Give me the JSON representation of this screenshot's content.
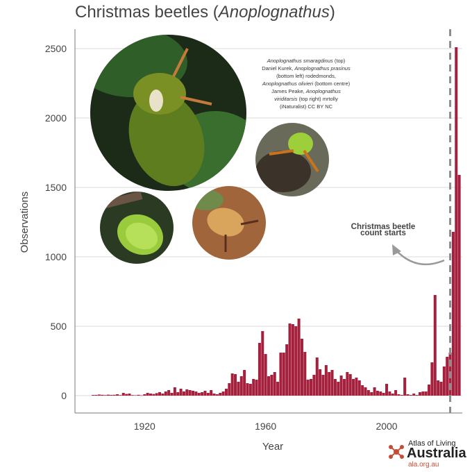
{
  "title_plain": "Christmas beetles (",
  "title_italic": "Anoplognathus",
  "title_close": ")",
  "photo_credit": {
    "line1_italic": "Anoplognathus smaragdinus",
    "line1_rest": " (top)",
    "line2": "Daniel Kurek, ",
    "line2_italic": "Anoplognathus prasinus",
    "line3": "(bottom left) rodedmonds,",
    "line4_italic": "Anoplognathus olivieri",
    "line4_rest": " (bottom centre)",
    "line5": "James Peake, ",
    "line5_italic": "Anoplognathus",
    "line6_italic": "viriditarsis",
    "line6_rest": " (top right) mrtolly",
    "line7": "(iNaturalist) CC BY NC"
  },
  "annotation": {
    "line1": "Christmas beetle",
    "line2": "count starts"
  },
  "logo": {
    "line1": "Atlas of Living",
    "line2": "Australia",
    "line3": "ala.org.au"
  },
  "colors": {
    "bar": "#a4203c",
    "grid": "#d9d9d9",
    "dashed_line": "#8c8c8c",
    "logo_accent": "#c44d34"
  },
  "chart_data": {
    "type": "bar",
    "title": "Christmas beetles (Anoplognathus)",
    "xlabel": "Year",
    "ylabel": "Observations",
    "xlim": [
      1897,
      2025
    ],
    "ylim": [
      0,
      2500
    ],
    "xticks": [
      1920,
      1960,
      2000
    ],
    "yticks": [
      0,
      500,
      1000,
      1500,
      2000,
      2500
    ],
    "grid": "horizontal",
    "reference_line": {
      "x": 2021,
      "style": "dashed",
      "label": "Christmas beetle count starts"
    },
    "x": [
      1903,
      1904,
      1905,
      1906,
      1907,
      1908,
      1909,
      1910,
      1911,
      1912,
      1913,
      1914,
      1915,
      1916,
      1917,
      1918,
      1919,
      1920,
      1921,
      1922,
      1923,
      1924,
      1925,
      1926,
      1927,
      1928,
      1929,
      1930,
      1931,
      1932,
      1933,
      1934,
      1935,
      1936,
      1937,
      1938,
      1939,
      1940,
      1941,
      1942,
      1943,
      1944,
      1945,
      1946,
      1947,
      1948,
      1949,
      1950,
      1951,
      1952,
      1953,
      1954,
      1955,
      1956,
      1957,
      1958,
      1959,
      1960,
      1961,
      1962,
      1963,
      1964,
      1965,
      1966,
      1967,
      1968,
      1969,
      1970,
      1971,
      1972,
      1973,
      1974,
      1975,
      1976,
      1977,
      1978,
      1979,
      1980,
      1981,
      1982,
      1983,
      1984,
      1985,
      1986,
      1987,
      1988,
      1989,
      1990,
      1991,
      1992,
      1993,
      1994,
      1995,
      1996,
      1997,
      1998,
      1999,
      2000,
      2001,
      2002,
      2003,
      2004,
      2005,
      2006,
      2007,
      2008,
      2009,
      2010,
      2011,
      2012,
      2013,
      2014,
      2015,
      2016,
      2017,
      2018,
      2019,
      2020,
      2021,
      2022,
      2023,
      2024
    ],
    "values": [
      5,
      5,
      8,
      6,
      4,
      7,
      5,
      6,
      10,
      4,
      20,
      12,
      15,
      4,
      3,
      6,
      2,
      10,
      20,
      15,
      12,
      18,
      25,
      15,
      30,
      40,
      20,
      60,
      25,
      50,
      30,
      45,
      40,
      35,
      30,
      20,
      25,
      35,
      20,
      40,
      15,
      10,
      20,
      30,
      50,
      90,
      160,
      155,
      100,
      140,
      185,
      90,
      85,
      120,
      115,
      380,
      465,
      300,
      140,
      150,
      170,
      100,
      310,
      310,
      370,
      520,
      515,
      500,
      555,
      410,
      315,
      115,
      120,
      150,
      275,
      190,
      150,
      220,
      170,
      185,
      120,
      100,
      145,
      120,
      170,
      155,
      120,
      130,
      110,
      75,
      60,
      40,
      25,
      60,
      35,
      30,
      20,
      85,
      30,
      15,
      40,
      10,
      5,
      130,
      10,
      5,
      15,
      5,
      25,
      30,
      30,
      80,
      240,
      725,
      110,
      100,
      210,
      280,
      310,
      1180,
      2510,
      1590
    ]
  }
}
